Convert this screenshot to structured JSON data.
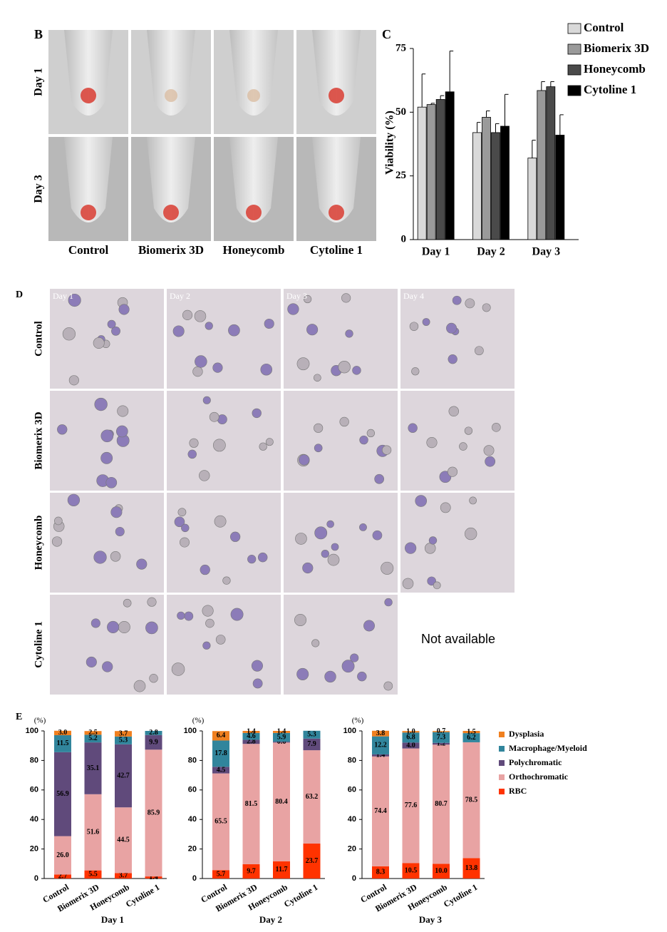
{
  "panel_b": {
    "label": "B",
    "rows": [
      "Day 1",
      "Day 3"
    ],
    "columns": [
      "Control",
      "Biomerix 3D",
      "Honeycomb",
      "Cytoline 1"
    ]
  },
  "panel_d": {
    "label": "D",
    "rows": [
      "Control",
      "Biomerix 3D",
      "Honeycomb",
      "Cytoline 1"
    ],
    "columns": [
      "Day 1",
      "Day 2",
      "Day 3",
      "Day 4"
    ],
    "note": "Not available"
  },
  "chart_data": [
    {
      "type": "bar",
      "label": "C",
      "ylabel": "Viability (%)",
      "categories": [
        "Day 1",
        "Day 2",
        "Day 3"
      ],
      "ylim": [
        0,
        75
      ],
      "yticks": [
        0,
        25,
        50,
        75
      ],
      "series": [
        {
          "name": "Control",
          "color": "#d9d9d9",
          "values": [
            52,
            42,
            32
          ],
          "errors": [
            13,
            4,
            7
          ]
        },
        {
          "name": "Biomerix 3D",
          "color": "#9a9a9a",
          "values": [
            53,
            48,
            58.5
          ],
          "errors": [
            0.5,
            2.5,
            3.5
          ]
        },
        {
          "name": "Honeycomb",
          "color": "#4a4a4a",
          "values": [
            55,
            42,
            60
          ],
          "errors": [
            1.5,
            3.5,
            2
          ]
        },
        {
          "name": "Cytoline 1",
          "color": "#000000",
          "values": [
            58,
            44.5,
            41
          ],
          "errors": [
            16,
            12.5,
            8
          ]
        }
      ]
    },
    {
      "type": "stacked_bar",
      "label": "E",
      "ylabel": "(%)",
      "categories": [
        "Control",
        "Biomerix 3D",
        "Honeycomb",
        "Cytoline 1"
      ],
      "ylim": [
        0,
        100
      ],
      "yticks": [
        0,
        20,
        40,
        60,
        80,
        100
      ],
      "series": [
        {
          "name": "RBC",
          "color": "#ff3300"
        },
        {
          "name": "Orthochromatic",
          "color": "#e8a3a3"
        },
        {
          "name": "Polychromatic",
          "color": "#604a7b"
        },
        {
          "name": "Macrophage/Myeloid",
          "color": "#31859c"
        },
        {
          "name": "Dysplasia",
          "color": "#f08020"
        }
      ],
      "groups": [
        {
          "xlabel": "Day 1",
          "values": [
            [
              2.7,
              5.5,
              3.7,
              1.4
            ],
            [
              26.0,
              51.6,
              44.5,
              85.9
            ],
            [
              56.9,
              35.1,
              42.7,
              9.9
            ],
            [
              11.5,
              5.2,
              5.3,
              2.8
            ],
            [
              3.0,
              2.5,
              3.7,
              null
            ]
          ],
          "value_labels": [
            [
              "2.7",
              "5.5",
              "3.7",
              "1.4"
            ],
            [
              "26.0",
              "51.6",
              "44.5",
              "85.9"
            ],
            [
              "56.9",
              "35.1",
              "42.7",
              "9.9"
            ],
            [
              "11.5",
              "5.2",
              "5.3",
              "2.8"
            ],
            [
              "3.0",
              "2.5",
              "3.7",
              null
            ]
          ]
        },
        {
          "xlabel": "Day 2",
          "values": [
            [
              5.7,
              9.7,
              11.7,
              23.7
            ],
            [
              65.5,
              81.5,
              80.4,
              63.2
            ],
            [
              4.5,
              2.8,
              0.6,
              7.9
            ],
            [
              17.8,
              4.6,
              5.9,
              5.3
            ],
            [
              6.4,
              1.4,
              1.4,
              null
            ]
          ],
          "value_labels": [
            [
              "5.7",
              "9.7",
              "11.7",
              "23.7"
            ],
            [
              "65.5",
              "81.5",
              "80.4",
              "63.2"
            ],
            [
              "4.5",
              "2.8",
              "0.6",
              "7.9"
            ],
            [
              "17.8",
              "4.6",
              "5.9",
              "5.3"
            ],
            [
              "6.4",
              "1.4",
              "1.4",
              null
            ]
          ]
        },
        {
          "xlabel": "Day 3",
          "values": [
            [
              8.3,
              10.5,
              10.0,
              13.8
            ],
            [
              74.4,
              77.6,
              80.7,
              78.5
            ],
            [
              1.4,
              4.0,
              1.2,
              null
            ],
            [
              12.2,
              6.8,
              7.3,
              6.2
            ],
            [
              3.8,
              1.0,
              0.7,
              1.5
            ]
          ],
          "value_labels": [
            [
              "8.3",
              "10.5",
              "10.0",
              "13.8"
            ],
            [
              "74.4",
              "77.6",
              "80.7",
              "78.5"
            ],
            [
              "1.4",
              "4.0",
              "1.2",
              null
            ],
            [
              "12.2",
              "6.8",
              "7.3",
              "6.2"
            ],
            [
              "3.8",
              "1.0",
              "0.7",
              "1.5"
            ]
          ]
        }
      ]
    }
  ]
}
